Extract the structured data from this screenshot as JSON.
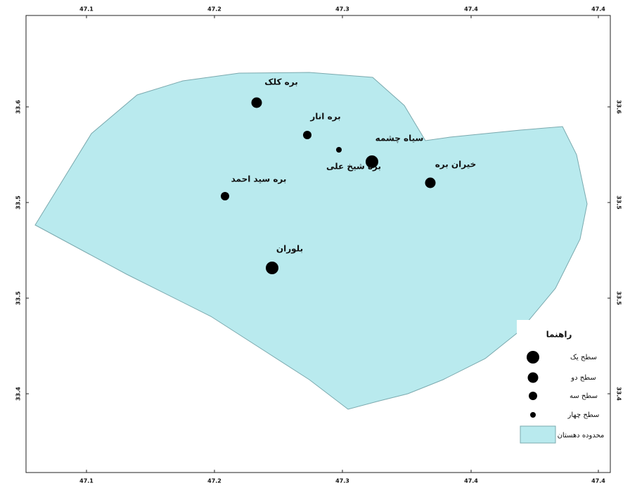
{
  "map": {
    "x_ticks": [
      "47.1",
      "47.2",
      "47.3",
      "47.4",
      "47.4"
    ],
    "y_ticks": [
      "33.6",
      "33.5",
      "33.5",
      "33.4"
    ],
    "places": [
      "بره کلک",
      "بره انار",
      "سیاه چشمه",
      "بره شیخ علی",
      "خیران بره",
      "بره سید احمد",
      "بلوران"
    ],
    "legend": {
      "title": "راهنما",
      "items": [
        "سطح یک",
        "سطح دو",
        "سطح سه",
        "سطح چهار",
        "محدوده دهستان"
      ]
    }
  }
}
